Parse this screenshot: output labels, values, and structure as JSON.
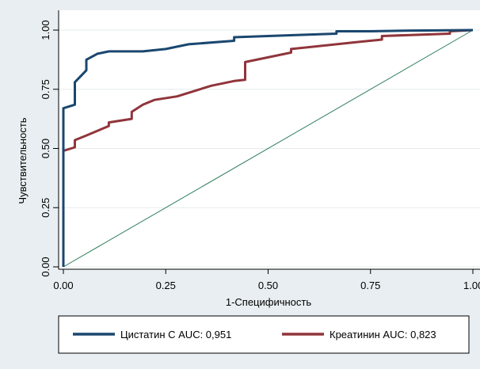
{
  "chart_data": {
    "type": "line",
    "xlabel": "1-Специфичность",
    "ylabel": "Чувствительность",
    "xlim": [
      0,
      1
    ],
    "ylim": [
      0,
      1
    ],
    "x_ticks": [
      0,
      0.25,
      0.5,
      0.75,
      1
    ],
    "x_tick_labels": [
      "0.00",
      "0.25",
      "0.50",
      "0.75",
      "1.00"
    ],
    "y_ticks": [
      0,
      0.25,
      0.5,
      0.75,
      1
    ],
    "y_tick_labels": [
      "0.00",
      "0.25",
      "0.50",
      "0.75",
      "1.00"
    ],
    "grid": "horizontal",
    "legend_position": "bottom",
    "reference_line": {
      "x": [
        0,
        1
      ],
      "y": [
        0,
        1
      ],
      "color": "#2e7d5b"
    },
    "series": [
      {
        "name": "Цистатин С AUC: 0,951",
        "color": "#1a476f",
        "x": [
          0,
          0,
          0.028,
          0.028,
          0.028,
          0.056,
          0.056,
          0.083,
          0.111,
          0.194,
          0.25,
          0.306,
          0.417,
          0.417,
          0.5,
          0.583,
          0.667,
          0.667,
          0.75,
          0.85,
          1.0
        ],
        "y": [
          0,
          0.67,
          0.685,
          0.775,
          0.78,
          0.83,
          0.875,
          0.9,
          0.91,
          0.91,
          0.92,
          0.94,
          0.955,
          0.97,
          0.975,
          0.98,
          0.985,
          0.995,
          0.995,
          0.998,
          1.0
        ]
      },
      {
        "name": "Креатинин AUC: 0,823",
        "color": "#90353b",
        "x": [
          0,
          0,
          0.028,
          0.028,
          0.056,
          0.111,
          0.111,
          0.167,
          0.167,
          0.194,
          0.222,
          0.278,
          0.361,
          0.417,
          0.444,
          0.444,
          0.5,
          0.556,
          0.556,
          0.722,
          0.778,
          0.778,
          0.944,
          0.944,
          1.0
        ],
        "y": [
          0,
          0.49,
          0.505,
          0.535,
          0.555,
          0.595,
          0.61,
          0.625,
          0.655,
          0.685,
          0.705,
          0.72,
          0.765,
          0.785,
          0.79,
          0.865,
          0.885,
          0.905,
          0.92,
          0.95,
          0.96,
          0.975,
          0.985,
          0.995,
          1.0
        ]
      }
    ]
  }
}
